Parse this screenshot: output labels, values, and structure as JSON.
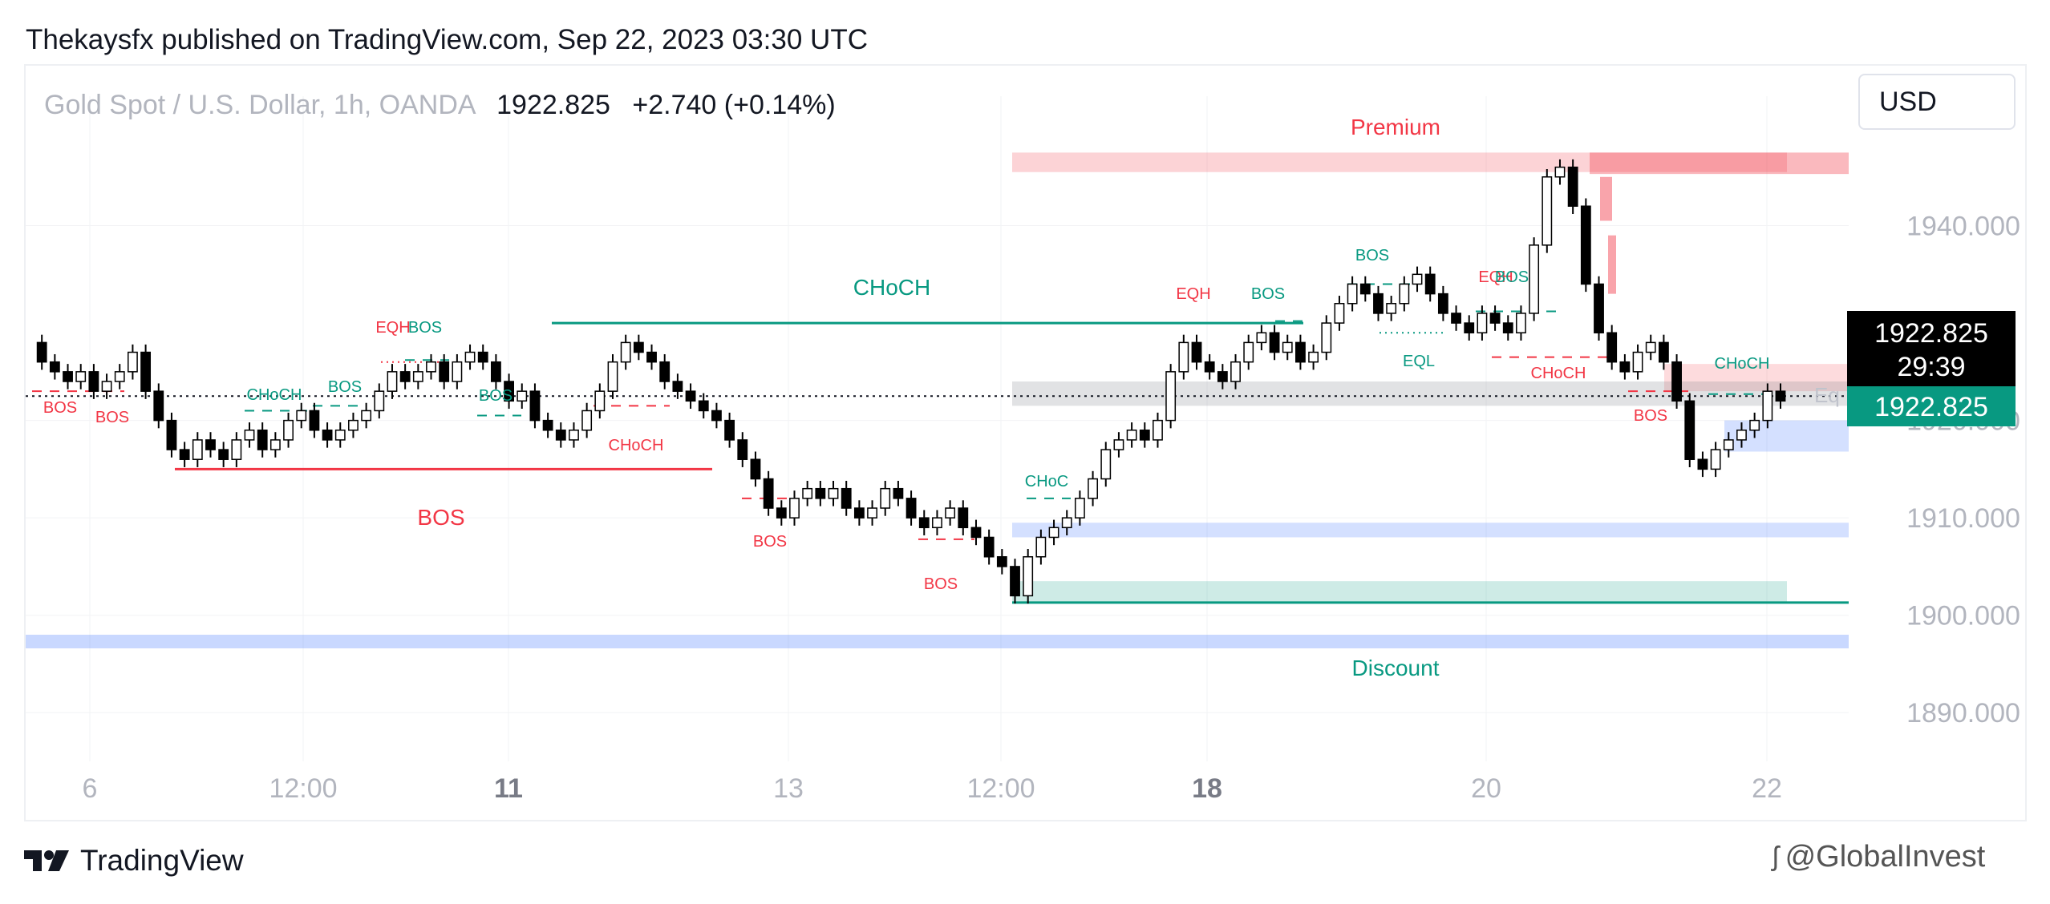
{
  "publisher": "Thekaysfx published on TradingView.com, Sep 22, 2023 03:30 UTC",
  "header": {
    "symbol": "Gold Spot / U.S. Dollar, 1h, OANDA",
    "price": "1922.825",
    "change": "+2.740 (+0.14%)"
  },
  "currency_button": "USD",
  "chart_data": {
    "type": "candlestick",
    "x_tick_labels": [
      "6",
      "12:00",
      "11",
      "13",
      "12:00",
      "18",
      "20",
      "22"
    ],
    "y_tick_labels": [
      "1940.000",
      "1920.000",
      "1910.000",
      "1900.000",
      "1890.000"
    ],
    "ylim": [
      1885,
      1950
    ],
    "last_price": "1922.825",
    "countdown": "29:39",
    "close_marker": "1922.825",
    "equilibrium_label": "Eq",
    "zones": {
      "premium_label": "Premium",
      "discount_label": "Discount"
    },
    "annotations": [
      {
        "text": "CHoCH",
        "kind": "major",
        "color": "#089981"
      },
      {
        "text": "BOS",
        "kind": "major",
        "color": "#f23645"
      },
      {
        "text": "BOS",
        "color": "#f23645"
      },
      {
        "text": "BOS",
        "color": "#f23645"
      },
      {
        "text": "CHoCH",
        "color": "#089981"
      },
      {
        "text": "BOS",
        "color": "#089981"
      },
      {
        "text": "EQH",
        "color": "#f23645"
      },
      {
        "text": "BOS",
        "color": "#089981"
      },
      {
        "text": "BOS",
        "color": "#089981"
      },
      {
        "text": "CHoCH",
        "color": "#f23645"
      },
      {
        "text": "BOS",
        "color": "#f23645"
      },
      {
        "text": "BOS",
        "color": "#f23645"
      },
      {
        "text": "CHoC",
        "color": "#089981"
      },
      {
        "text": "EQH",
        "color": "#f23645"
      },
      {
        "text": "BOS",
        "color": "#089981"
      },
      {
        "text": "BOS",
        "color": "#089981"
      },
      {
        "text": "EQL",
        "color": "#089981"
      },
      {
        "text": "EQH",
        "color": "#f23645"
      },
      {
        "text": "BOS",
        "color": "#089981"
      },
      {
        "text": "CHoCH",
        "color": "#f23645"
      },
      {
        "text": "BOS",
        "color": "#f23645"
      },
      {
        "text": "CHoCH",
        "color": "#089981"
      }
    ],
    "price_path": [
      1928,
      1926,
      1925,
      1924,
      1925,
      1923,
      1924,
      1925,
      1927,
      1923,
      1920,
      1917,
      1916,
      1918,
      1917,
      1916,
      1918,
      1919,
      1917,
      1918,
      1920,
      1921,
      1919,
      1918,
      1919,
      1920,
      1921,
      1923,
      1925,
      1924,
      1925,
      1926,
      1924,
      1926,
      1927,
      1926,
      1924,
      1922,
      1923,
      1920,
      1919,
      1918,
      1919,
      1921,
      1923,
      1926,
      1928,
      1927,
      1926,
      1924,
      1923,
      1922,
      1921,
      1920,
      1918,
      1916,
      1914,
      1911,
      1910,
      1912,
      1913,
      1912,
      1913,
      1911,
      1910,
      1911,
      1913,
      1912,
      1910,
      1909,
      1910,
      1911,
      1909,
      1908,
      1906,
      1905,
      1902,
      1906,
      1908,
      1909,
      1910,
      1912,
      1914,
      1917,
      1918,
      1919,
      1918,
      1920,
      1925,
      1928,
      1926,
      1925,
      1924,
      1926,
      1928,
      1929,
      1927,
      1928,
      1926,
      1927,
      1930,
      1932,
      1934,
      1933,
      1931,
      1932,
      1934,
      1935,
      1933,
      1931,
      1930,
      1929,
      1931,
      1930,
      1929,
      1931,
      1938,
      1945,
      1946,
      1942,
      1934,
      1929,
      1926,
      1925,
      1927,
      1928,
      1926,
      1922,
      1916,
      1915,
      1917,
      1918,
      1919,
      1920,
      1923,
      1922
    ]
  },
  "footer": {
    "brand": "TradingView",
    "watermark": "@GlobalInvest"
  }
}
